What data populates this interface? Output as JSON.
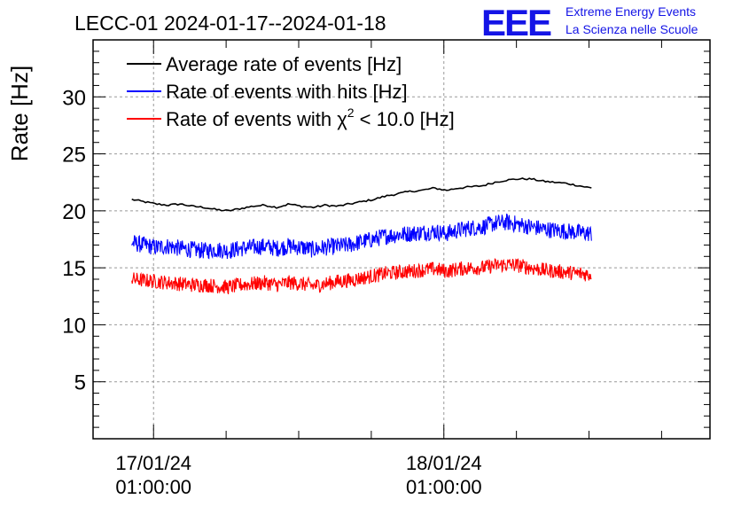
{
  "header": {
    "title": "LECC-01 2024-01-17--2024-01-18",
    "logo_text": "EEE",
    "org_line1": "Extreme Energy Events",
    "org_line2": "La Scienza nelle Scuole"
  },
  "colors": {
    "brand": "#1414e6",
    "series_black": "#000000",
    "series_blue": "#0000ff",
    "series_red": "#ff0000",
    "grid": "#999999"
  },
  "chart_data": {
    "type": "line",
    "title": "LECC-01 2024-01-17--2024-01-18",
    "ylabel": "Rate [Hz]",
    "xlabel": "",
    "ylim": [
      0,
      35
    ],
    "xlim": [
      "2024-01-16 20:00",
      "2024-01-18 23:00"
    ],
    "y_ticks": [
      5,
      10,
      15,
      20,
      25,
      30
    ],
    "x_ticks": [
      {
        "date": "17/01/24",
        "time": "01:00:00"
      },
      {
        "date": "18/01/24",
        "time": "01:00:00"
      }
    ],
    "grid": true,
    "legend_position": "top-left",
    "legend": {
      "sup": "2",
      "red_prefix": "Rate of events with χ",
      "red_suffix": " < 10.0 [Hz]"
    },
    "x_hours": [
      0,
      1,
      2,
      3,
      4,
      5,
      6,
      7,
      8,
      9,
      10,
      11,
      12,
      13,
      14,
      15,
      16,
      17,
      18,
      19,
      20,
      21,
      22,
      23,
      24,
      25,
      26,
      27,
      28,
      29,
      30,
      31,
      32,
      33,
      34,
      35,
      36,
      37,
      38
    ],
    "series": [
      {
        "name": "Average rate of events [Hz]",
        "color": "#000000",
        "values": [
          21.0,
          20.8,
          20.6,
          20.5,
          20.6,
          20.4,
          20.3,
          20.1,
          20.0,
          20.2,
          20.4,
          20.5,
          20.3,
          20.6,
          20.4,
          20.3,
          20.5,
          20.4,
          20.6,
          20.8,
          21.0,
          21.3,
          21.5,
          21.7,
          21.8,
          22.0,
          21.8,
          22.0,
          22.1,
          22.2,
          22.5,
          22.7,
          22.8,
          22.8,
          22.6,
          22.5,
          22.4,
          22.2,
          22.0
        ]
      },
      {
        "name": "Rate of events with hits [Hz]",
        "color": "#0000ff",
        "values": [
          17.2,
          17.0,
          16.8,
          16.9,
          16.7,
          16.6,
          16.5,
          16.6,
          16.5,
          16.7,
          16.8,
          16.9,
          16.7,
          16.9,
          16.8,
          16.6,
          16.8,
          16.9,
          17.0,
          17.3,
          17.5,
          17.8,
          17.9,
          18.0,
          18.1,
          18.2,
          18.0,
          18.3,
          18.5,
          18.6,
          18.9,
          19.0,
          18.8,
          18.6,
          18.4,
          18.3,
          18.2,
          18.1,
          18.0
        ]
      },
      {
        "name": "Rate of events with χ2 < 10.0 [Hz]",
        "color": "#ff0000",
        "values": [
          14.0,
          13.9,
          13.8,
          13.7,
          13.6,
          13.5,
          13.5,
          13.4,
          13.3,
          13.5,
          13.6,
          13.7,
          13.5,
          13.7,
          13.6,
          13.4,
          13.6,
          13.8,
          13.9,
          14.1,
          14.3,
          14.5,
          14.6,
          14.7,
          14.8,
          14.9,
          14.7,
          14.9,
          15.0,
          15.0,
          15.2,
          15.3,
          15.2,
          15.0,
          14.8,
          14.7,
          14.6,
          14.5,
          14.4
        ]
      }
    ]
  }
}
